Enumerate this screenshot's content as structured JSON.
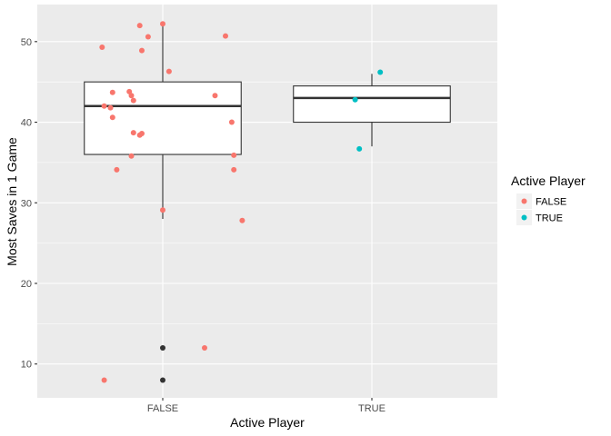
{
  "chart_data": {
    "type": "boxplot_jitter",
    "xlabel": "Active Player",
    "ylabel": "Most Saves in 1 Game",
    "categories": [
      "FALSE",
      "TRUE"
    ],
    "ylim": [
      5.8,
      54.6
    ],
    "yticks": [
      10,
      20,
      30,
      40,
      50
    ],
    "grid": true,
    "legend": {
      "title": "Active Player",
      "position": "right",
      "entries": [
        {
          "label": "FALSE",
          "color": "#F8766D"
        },
        {
          "label": "TRUE",
          "color": "#00BFC4"
        }
      ]
    },
    "boxes": [
      {
        "category": "FALSE",
        "min": 28,
        "q1": 36,
        "median": 42,
        "q3": 45,
        "max": 52,
        "outliers": [
          12,
          8
        ]
      },
      {
        "category": "TRUE",
        "min": 37,
        "q1": 40,
        "median": 43,
        "q3": 44.5,
        "max": 46,
        "outliers": []
      }
    ],
    "series": [
      {
        "name": "FALSE",
        "color": "#F8766D",
        "points": [
          {
            "x": 0.71,
            "y": 49.3
          },
          {
            "x": 0.89,
            "y": 52.0
          },
          {
            "x": 1.0,
            "y": 52.2
          },
          {
            "x": 0.93,
            "y": 50.6
          },
          {
            "x": 1.3,
            "y": 50.7
          },
          {
            "x": 0.9,
            "y": 48.9
          },
          {
            "x": 1.03,
            "y": 46.3
          },
          {
            "x": 0.76,
            "y": 43.7
          },
          {
            "x": 0.84,
            "y": 43.8
          },
          {
            "x": 0.85,
            "y": 43.3
          },
          {
            "x": 0.86,
            "y": 42.7
          },
          {
            "x": 0.72,
            "y": 42.0
          },
          {
            "x": 0.75,
            "y": 41.8
          },
          {
            "x": 0.76,
            "y": 40.6
          },
          {
            "x": 1.25,
            "y": 43.3
          },
          {
            "x": 1.33,
            "y": 40.0
          },
          {
            "x": 0.86,
            "y": 38.7
          },
          {
            "x": 0.9,
            "y": 38.6
          },
          {
            "x": 0.89,
            "y": 38.4
          },
          {
            "x": 0.85,
            "y": 35.8
          },
          {
            "x": 0.78,
            "y": 34.1
          },
          {
            "x": 1.34,
            "y": 35.9
          },
          {
            "x": 1.34,
            "y": 34.1
          },
          {
            "x": 1.0,
            "y": 29.1
          },
          {
            "x": 1.38,
            "y": 27.8
          },
          {
            "x": 1.2,
            "y": 12.0
          },
          {
            "x": 0.72,
            "y": 8.0
          }
        ]
      },
      {
        "name": "TRUE",
        "color": "#00BFC4",
        "points": [
          {
            "x": 2.04,
            "y": 46.2
          },
          {
            "x": 1.92,
            "y": 42.8
          },
          {
            "x": 1.94,
            "y": 36.7
          }
        ]
      }
    ]
  }
}
